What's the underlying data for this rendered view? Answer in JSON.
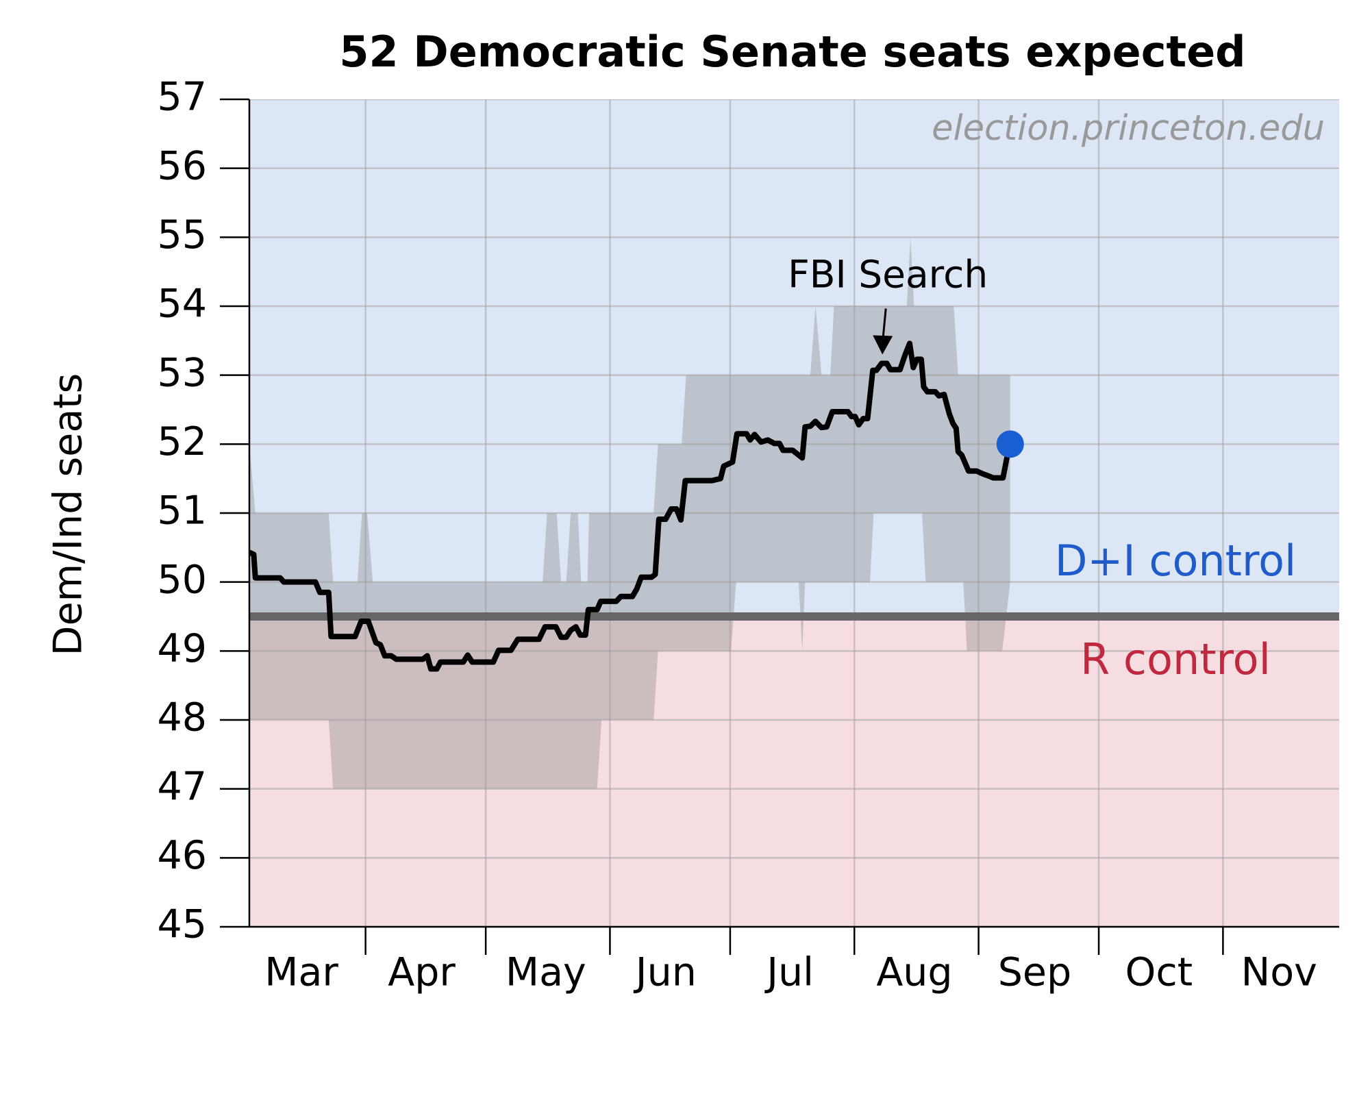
{
  "chart_data": {
    "type": "line",
    "title": "52 Democratic Senate seats expected",
    "ylabel": "Dem/Ind seats",
    "watermark": "election.princeton.edu",
    "xlim": [
      62,
      334
    ],
    "xticks": [
      {
        "value": 75,
        "label": "Mar"
      },
      {
        "value": 105,
        "label": "Apr"
      },
      {
        "value": 136,
        "label": "May"
      },
      {
        "value": 166,
        "label": "Jun"
      },
      {
        "value": 197,
        "label": "Jul"
      },
      {
        "value": 228,
        "label": "Aug"
      },
      {
        "value": 258,
        "label": "Sep"
      },
      {
        "value": 289,
        "label": "Oct"
      },
      {
        "value": 319,
        "label": "Nov"
      }
    ],
    "month_starts": [
      91,
      121,
      152,
      182,
      213,
      244,
      274,
      305
    ],
    "ylim": [
      45,
      57
    ],
    "yticks": [
      45,
      46,
      47,
      48,
      49,
      50,
      51,
      52,
      53,
      54,
      55,
      56,
      57
    ],
    "grid": true,
    "threshold": 49.5,
    "above_label": "D+I control",
    "below_label": "R control",
    "above_color": "#dce6f5",
    "below_color": "#f5dde1",
    "band_color": "#808080",
    "band": {
      "upper": {
        "x": [
          62,
          63.5,
          81.8,
          82.9,
          89.0,
          90.1,
          91.4,
          92.8,
          135.2,
          136.3,
          138.7,
          139.8,
          141.1,
          142.2,
          144.0,
          144.8,
          146.4,
          146.8,
          162.9,
          164.0,
          169.9,
          171.0,
          202.0,
          203.3,
          204.8,
          207.0,
          207.9,
          226.1,
          227.0,
          227.9,
          237.8,
          238.9,
          251.9
        ],
        "values": [
          52,
          51,
          51,
          50,
          50,
          51,
          51,
          50,
          50,
          51,
          51,
          50,
          50,
          51,
          51,
          50,
          50,
          51,
          51,
          52,
          52,
          53,
          53,
          54,
          53,
          53,
          54,
          54,
          55,
          54,
          54,
          53,
          53
        ]
      },
      "lower": {
        "x": [
          62,
          81.8,
          82.9,
          148.8,
          149.9,
          162.9,
          164.0,
          182.2,
          183.5,
          199.1,
          200.0,
          200.7,
          216.9,
          217.8,
          229.9,
          230.8,
          240.2,
          241.1,
          249.9,
          251.9
        ],
        "values": [
          48,
          48,
          47,
          47,
          48,
          48,
          49,
          49,
          50,
          50,
          49,
          50,
          50,
          51,
          51,
          50,
          50,
          49,
          49,
          50
        ]
      }
    },
    "series": [
      {
        "name": "Dem/Ind seats",
        "color": "#000000",
        "x": [
          62,
          63.1,
          63.5,
          69.7,
          70.6,
          78.5,
          79.6,
          81.8,
          82.4,
          88.4,
          89.9,
          91.7,
          93.6,
          94.7,
          95.8,
          97.4,
          98.7,
          105.3,
          106.4,
          107.3,
          108.8,
          109.7,
          115.4,
          116.5,
          117.6,
          122.9,
          124.2,
          127.3,
          129.0,
          134.3,
          135.8,
          138.5,
          139.8,
          141.1,
          142.2,
          143.5,
          144.6,
          145.9,
          146.6,
          148.8,
          149.7,
          153.6,
          154.7,
          157.6,
          158.7,
          159.8,
          162.4,
          163.3,
          164.2,
          165.9,
          167.3,
          168.6,
          169.7,
          170.8,
          177.4,
          179.6,
          180.4,
          182.6,
          183.7,
          186.1,
          187.0,
          188.1,
          189.7,
          191.4,
          193.0,
          194.3,
          195.2,
          197.6,
          200.0,
          200.7,
          202.0,
          203.3,
          204.8,
          206.1,
          207.5,
          211.4,
          212.3,
          213.2,
          214.1,
          215.2,
          216.3,
          217.6,
          218.5,
          219.8,
          221.1,
          222.0,
          224.4,
          225.7,
          226.8,
          227.7,
          228.6,
          229.7,
          230.3,
          231.2,
          233.2,
          234.1,
          235.4,
          236.7,
          237.6,
          238.4,
          238.9,
          239.8,
          241.5,
          243.5,
          245.0,
          246.4,
          247.7,
          250.1,
          251.9
        ],
        "values": [
          50.43,
          50.4,
          50.06,
          50.06,
          50.0,
          50.0,
          49.85,
          49.85,
          49.21,
          49.21,
          49.43,
          49.43,
          49.12,
          49.09,
          48.93,
          48.93,
          48.88,
          48.88,
          48.93,
          48.74,
          48.74,
          48.84,
          48.84,
          48.94,
          48.84,
          48.84,
          49.01,
          49.01,
          49.17,
          49.17,
          49.35,
          49.35,
          49.2,
          49.2,
          49.3,
          49.35,
          49.23,
          49.23,
          49.6,
          49.6,
          49.72,
          49.72,
          49.79,
          49.79,
          49.9,
          50.07,
          50.07,
          50.11,
          50.91,
          50.91,
          51.06,
          51.06,
          50.9,
          51.47,
          51.47,
          51.5,
          51.68,
          51.74,
          52.15,
          52.15,
          52.06,
          52.14,
          52.03,
          52.06,
          52.01,
          52.01,
          51.91,
          51.91,
          51.8,
          52.25,
          52.26,
          52.33,
          52.24,
          52.25,
          52.47,
          52.47,
          52.4,
          52.4,
          52.28,
          52.37,
          52.37,
          53.07,
          53.07,
          53.17,
          53.17,
          53.08,
          53.08,
          53.3,
          53.46,
          53.11,
          53.23,
          53.23,
          52.83,
          52.76,
          52.76,
          52.7,
          52.72,
          52.44,
          52.3,
          52.23,
          51.89,
          51.84,
          51.61,
          51.61,
          51.57,
          51.54,
          51.51,
          51.51,
          52.05
        ]
      }
    ],
    "latest": {
      "x": 251.9,
      "value": 52,
      "color": "#1a5fd1"
    },
    "annotation": {
      "text": "FBI Search",
      "x": 220,
      "y": 53.3
    }
  }
}
